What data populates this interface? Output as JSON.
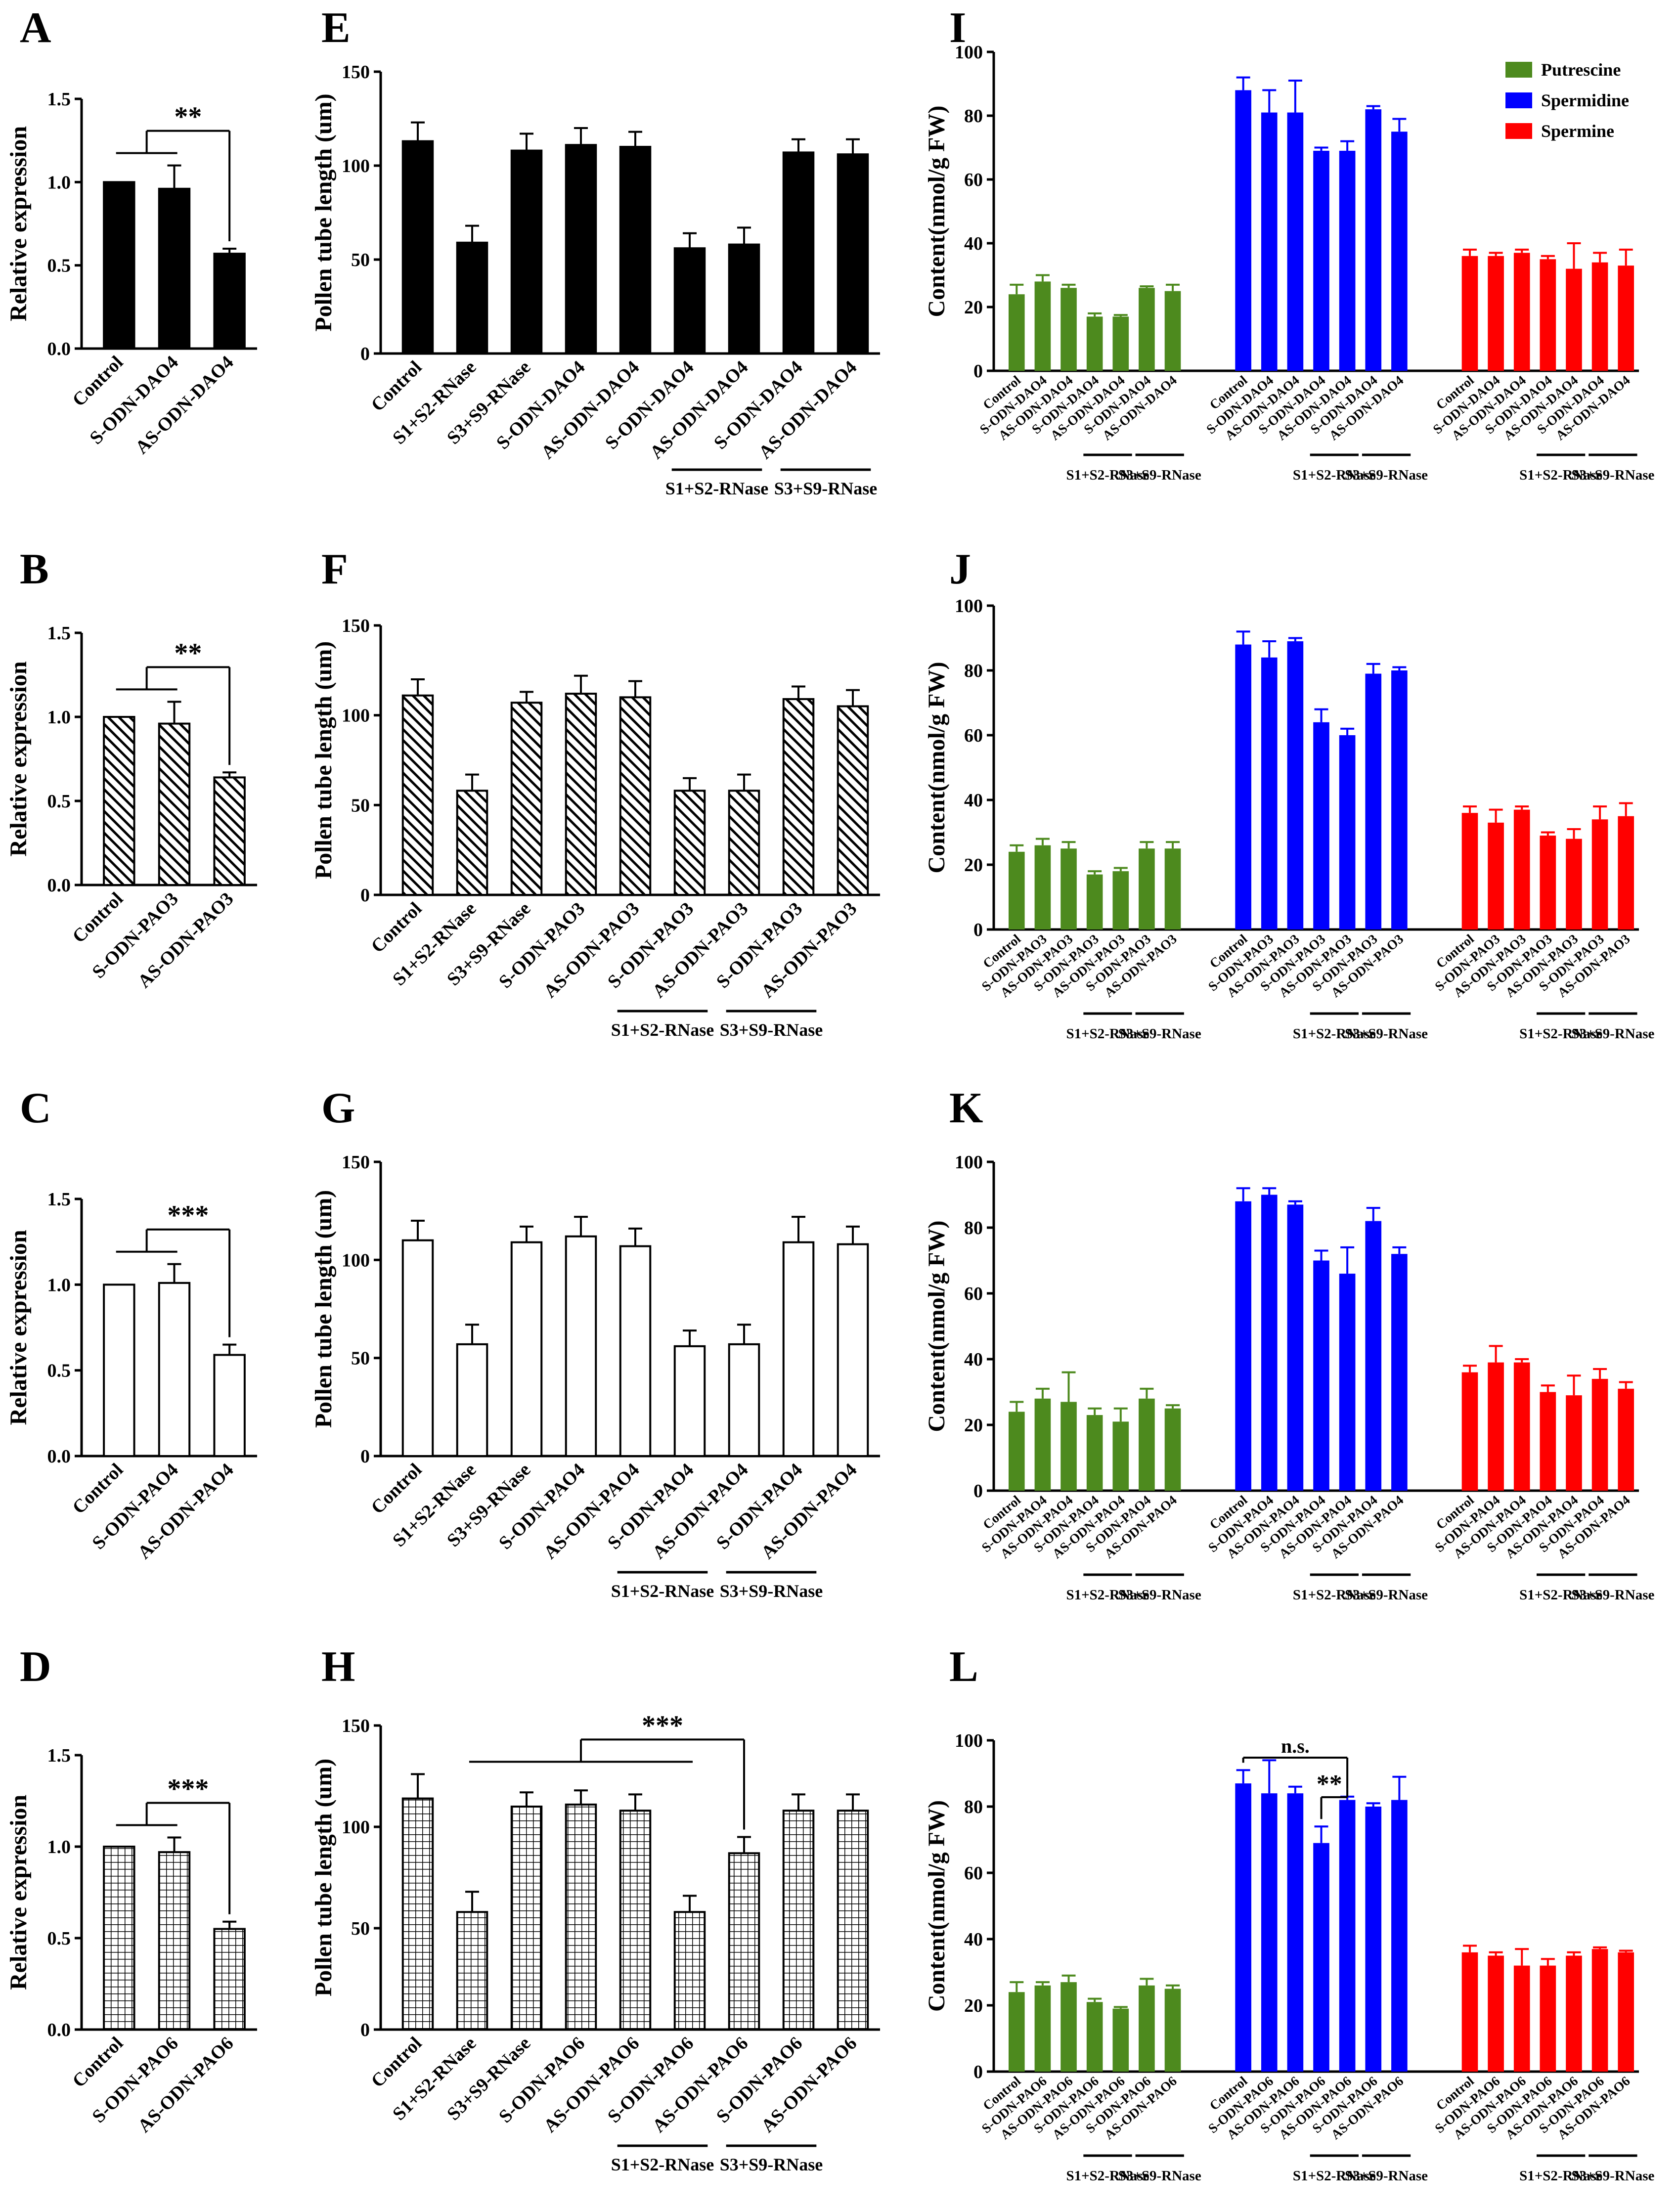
{
  "colors": {
    "putrescine": "#4d8a1e",
    "spermidine": "#0000ff",
    "spermine": "#ff0000",
    "mono": "#000000"
  },
  "chart_data": [
    {
      "panel": "A",
      "type": "bar",
      "ylabel": "Relative expression",
      "ylim": [
        0,
        1.5
      ],
      "yticks": [
        "0.0",
        "0.5",
        "1.0",
        "1.5"
      ],
      "fill": "solid",
      "categories": [
        "Control",
        "S-ODN-DAO4",
        "AS-ODN-DAO4"
      ],
      "values": [
        1.0,
        0.96,
        0.57
      ],
      "errors": [
        0,
        0.14,
        0.03
      ],
      "annotations": [
        {
          "text": "**",
          "from": [
            0,
            1
          ],
          "to": 2
        }
      ]
    },
    {
      "panel": "B",
      "type": "bar",
      "ylabel": "Relative expression",
      "ylim": [
        0,
        1.5
      ],
      "yticks": [
        "0.0",
        "0.5",
        "1.0",
        "1.5"
      ],
      "fill": "diag",
      "categories": [
        "Control",
        "S-ODN-PAO3",
        "AS-ODN-PAO3"
      ],
      "values": [
        1.0,
        0.96,
        0.64
      ],
      "errors": [
        0,
        0.13,
        0.03
      ],
      "annotations": [
        {
          "text": "**",
          "from": [
            0,
            1
          ],
          "to": 2
        }
      ]
    },
    {
      "panel": "C",
      "type": "bar",
      "ylabel": "Relative expression",
      "ylim": [
        0,
        1.5
      ],
      "yticks": [
        "0.0",
        "0.5",
        "1.0",
        "1.5"
      ],
      "fill": "open",
      "categories": [
        "Control",
        "S-ODN-PAO4",
        "AS-ODN-PAO4"
      ],
      "values": [
        1.0,
        1.01,
        0.59
      ],
      "errors": [
        0,
        0.11,
        0.06
      ],
      "annotations": [
        {
          "text": "***",
          "from": [
            0,
            1
          ],
          "to": 2
        }
      ]
    },
    {
      "panel": "D",
      "type": "bar",
      "ylabel": "Relative expression",
      "ylim": [
        0,
        1.5
      ],
      "yticks": [
        "0.0",
        "0.5",
        "1.0",
        "1.5"
      ],
      "fill": "grid",
      "categories": [
        "Control",
        "S-ODN-PAO6",
        "AS-ODN-PAO6"
      ],
      "values": [
        1.0,
        0.97,
        0.55
      ],
      "errors": [
        0,
        0.08,
        0.04
      ],
      "annotations": [
        {
          "text": "***",
          "from": [
            0,
            1
          ],
          "to": 2
        }
      ]
    },
    {
      "panel": "E",
      "type": "bar",
      "ylabel": "Pollen tube length (um)",
      "ylim": [
        0,
        150
      ],
      "yticks": [
        "0",
        "50",
        "100",
        "150"
      ],
      "fill": "solid",
      "categories": [
        "Control",
        "S1+S2-RNase",
        "S3+S9-RNase",
        "S-ODN-DAO4",
        "AS-ODN-DAO4",
        "S-ODN-DAO4",
        "AS-ODN-DAO4",
        "S-ODN-DAO4",
        "AS-ODN-DAO4"
      ],
      "values": [
        113,
        59,
        108,
        111,
        110,
        56,
        58,
        107,
        106
      ],
      "errors": [
        10,
        9,
        9,
        9,
        8,
        8,
        9,
        7,
        8
      ],
      "groups": [
        {
          "label": "S1+S2-RNase",
          "from": 5,
          "to": 6
        },
        {
          "label": "S3+S9-RNase",
          "from": 7,
          "to": 8
        }
      ]
    },
    {
      "panel": "F",
      "type": "bar",
      "ylabel": "Pollen tube length (um)",
      "ylim": [
        0,
        150
      ],
      "yticks": [
        "0",
        "50",
        "100",
        "150"
      ],
      "fill": "diag",
      "categories": [
        "Control",
        "S1+S2-RNase",
        "S3+S9-RNase",
        "S-ODN-PAO3",
        "AS-ODN-PAO3",
        "S-ODN-PAO3",
        "AS-ODN-PAO3",
        "S-ODN-PAO3",
        "AS-ODN-PAO3"
      ],
      "values": [
        111,
        58,
        107,
        112,
        110,
        58,
        58,
        109,
        105
      ],
      "errors": [
        9,
        9,
        6,
        10,
        9,
        7,
        9,
        7,
        9
      ],
      "groups": [
        {
          "label": "S1+S2-RNase",
          "from": 4,
          "to": 5
        },
        {
          "label": "S3+S9-RNase",
          "from": 6,
          "to": 7
        }
      ]
    },
    {
      "panel": "G",
      "type": "bar",
      "ylabel": "Pollen tube length (um)",
      "ylim": [
        0,
        150
      ],
      "yticks": [
        "0",
        "50",
        "100",
        "150"
      ],
      "fill": "open",
      "categories": [
        "Control",
        "S1+S2-RNase",
        "S3+S9-RNase",
        "S-ODN-PAO4",
        "AS-ODN-PAO4",
        "S-ODN-PAO4",
        "AS-ODN-PAO4",
        "S-ODN-PAO4",
        "AS-ODN-PAO4"
      ],
      "values": [
        110,
        57,
        109,
        112,
        107,
        56,
        57,
        109,
        108
      ],
      "errors": [
        10,
        10,
        8,
        10,
        9,
        8,
        10,
        13,
        9
      ],
      "groups": [
        {
          "label": "S1+S2-RNase",
          "from": 4,
          "to": 5
        },
        {
          "label": "S3+S9-RNase",
          "from": 6,
          "to": 7
        }
      ]
    },
    {
      "panel": "H",
      "type": "bar",
      "ylabel": "Pollen tube length (um)",
      "ylim": [
        0,
        150
      ],
      "yticks": [
        "0",
        "50",
        "100",
        "150"
      ],
      "fill": "grid",
      "categories": [
        "Control",
        "S1+S2-RNase",
        "S3+S9-RNase",
        "S-ODN-PAO6",
        "AS-ODN-PAO6",
        "S-ODN-PAO6",
        "AS-ODN-PAO6",
        "S-ODN-PAO6",
        "AS-ODN-PAO6"
      ],
      "values": [
        114,
        58,
        110,
        111,
        108,
        58,
        87,
        108,
        108
      ],
      "errors": [
        12,
        10,
        7,
        7,
        8,
        8,
        8,
        8,
        8
      ],
      "groups": [
        {
          "label": "S1+S2-RNase",
          "from": 4,
          "to": 5
        },
        {
          "label": "S3+S9-RNase",
          "from": 6,
          "to": 7
        }
      ],
      "annotations": [
        {
          "text": "***",
          "from": [
            1,
            5
          ],
          "to": 6
        }
      ]
    },
    {
      "panel": "I",
      "type": "bar",
      "ylabel": "Content(nmol/g FW)",
      "ylim": [
        0,
        100
      ],
      "yticks": [
        "0",
        "20",
        "40",
        "60",
        "80",
        "100"
      ],
      "categories": [
        "Control",
        "S-ODN-DAO4",
        "AS-ODN-DAO4",
        "S-ODN-DAO4",
        "AS-ODN-DAO4",
        "S-ODN-DAO4",
        "AS-ODN-DAO4"
      ],
      "legend": {
        "position": "top-right",
        "entries": [
          "Putrescine",
          "Spermidine",
          "Spermine"
        ]
      },
      "series": [
        {
          "name": "Putrescine",
          "values": [
            24,
            28,
            26,
            17,
            17,
            26,
            25
          ],
          "errors": [
            3,
            2,
            1,
            1,
            0.5,
            0.5,
            2
          ]
        },
        {
          "name": "Spermidine",
          "values": [
            88,
            81,
            81,
            69,
            69,
            82,
            75
          ],
          "errors": [
            4,
            7,
            10,
            1,
            3,
            1,
            4
          ]
        },
        {
          "name": "Spermine",
          "values": [
            36,
            36,
            37,
            35,
            32,
            34,
            33
          ],
          "errors": [
            2,
            1,
            1,
            1,
            8,
            3,
            5
          ]
        }
      ],
      "groups": [
        {
          "label": "S1+S2-RNase",
          "from": 3,
          "to": 4
        },
        {
          "label": "S3+S9-RNase",
          "from": 5,
          "to": 6
        }
      ]
    },
    {
      "panel": "J",
      "type": "bar",
      "ylabel": "Content(nmol/g FW)",
      "ylim": [
        0,
        100
      ],
      "yticks": [
        "0",
        "20",
        "40",
        "60",
        "80",
        "100"
      ],
      "categories": [
        "Control",
        "S-ODN-PAO3",
        "AS-ODN-PAO3",
        "S-ODN-PAO3",
        "AS-ODN-PAO3",
        "S-ODN-PAO3",
        "AS-ODN-PAO3"
      ],
      "series": [
        {
          "name": "Putrescine",
          "values": [
            24,
            26,
            25,
            17,
            18,
            25,
            25
          ],
          "errors": [
            2,
            2,
            2,
            1,
            1,
            2,
            2
          ]
        },
        {
          "name": "Spermidine",
          "values": [
            88,
            84,
            89,
            64,
            60,
            79,
            80
          ],
          "errors": [
            4,
            5,
            1,
            4,
            2,
            3,
            1
          ]
        },
        {
          "name": "Spermine",
          "values": [
            36,
            33,
            37,
            29,
            28,
            34,
            35
          ],
          "errors": [
            2,
            4,
            1,
            1,
            3,
            4,
            4
          ]
        }
      ],
      "groups": [
        {
          "label": "S1+S2-RNase",
          "from": 3,
          "to": 4
        },
        {
          "label": "S3+S9-RNase",
          "from": 5,
          "to": 6
        }
      ]
    },
    {
      "panel": "K",
      "type": "bar",
      "ylabel": "Content(nmol/g FW)",
      "ylim": [
        0,
        100
      ],
      "yticks": [
        "0",
        "20",
        "40",
        "60",
        "80",
        "100"
      ],
      "categories": [
        "Control",
        "S-ODN-PAO4",
        "AS-ODN-PAO4",
        "S-ODN-PAO4",
        "AS-ODN-PAO4",
        "S-ODN-PAO4",
        "AS-ODN-PAO4"
      ],
      "series": [
        {
          "name": "Putrescine",
          "values": [
            24,
            28,
            27,
            23,
            21,
            28,
            25
          ],
          "errors": [
            3,
            3,
            9,
            2,
            4,
            3,
            1
          ]
        },
        {
          "name": "Spermidine",
          "values": [
            88,
            90,
            87,
            70,
            66,
            82,
            72
          ],
          "errors": [
            4,
            2,
            1,
            3,
            8,
            4,
            2
          ]
        },
        {
          "name": "Spermine",
          "values": [
            36,
            39,
            39,
            30,
            29,
            34,
            31
          ],
          "errors": [
            2,
            5,
            1,
            2,
            6,
            3,
            2
          ]
        }
      ],
      "groups": [
        {
          "label": "S1+S2-RNase",
          "from": 3,
          "to": 4
        },
        {
          "label": "S3+S9-RNase",
          "from": 5,
          "to": 6
        }
      ]
    },
    {
      "panel": "L",
      "type": "bar",
      "ylabel": "Content(nmol/g FW)",
      "ylim": [
        0,
        100
      ],
      "yticks": [
        "0",
        "20",
        "40",
        "60",
        "80",
        "100"
      ],
      "categories": [
        "Control",
        "S-ODN-PAO6",
        "AS-ODN-PAO6",
        "S-ODN-PAO6",
        "AS-ODN-PAO6",
        "S-ODN-PAO6",
        "AS-ODN-PAO6"
      ],
      "series": [
        {
          "name": "Putrescine",
          "values": [
            24,
            26,
            27,
            21,
            19,
            26,
            25
          ],
          "errors": [
            3,
            1,
            2,
            1,
            0.5,
            2,
            1
          ]
        },
        {
          "name": "Spermidine",
          "values": [
            87,
            84,
            84,
            69,
            82,
            80,
            82
          ],
          "errors": [
            4,
            10,
            2,
            5,
            1,
            1,
            7
          ]
        },
        {
          "name": "Spermine",
          "values": [
            36,
            35,
            32,
            32,
            35,
            37,
            36
          ],
          "errors": [
            2,
            1,
            5,
            2,
            1,
            0.5,
            0.5
          ]
        }
      ],
      "groups": [
        {
          "label": "S1+S2-RNase",
          "from": 3,
          "to": 4
        },
        {
          "label": "S3+S9-RNase",
          "from": 5,
          "to": 6
        }
      ],
      "annotations": [
        {
          "text": "n.s.",
          "series": 1,
          "from": 0,
          "to": 4
        },
        {
          "text": "**",
          "series": 1,
          "from": 3,
          "to": 4
        }
      ]
    }
  ]
}
